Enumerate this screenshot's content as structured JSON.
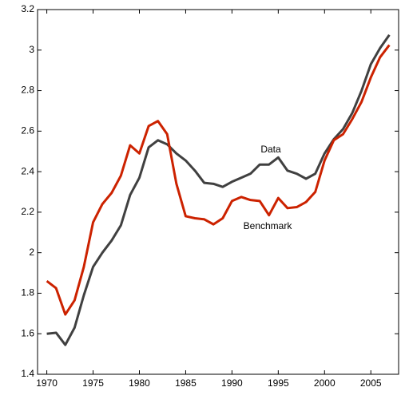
{
  "chart_data": {
    "type": "line",
    "x": [
      1970,
      1971,
      1972,
      1973,
      1974,
      1975,
      1976,
      1977,
      1978,
      1979,
      1980,
      1981,
      1982,
      1983,
      1984,
      1985,
      1986,
      1987,
      1988,
      1989,
      1990,
      1991,
      1992,
      1993,
      1994,
      1995,
      1996,
      1997,
      1998,
      1999,
      2000,
      2001,
      2002,
      2003,
      2004,
      2005,
      2006,
      2007
    ],
    "series": [
      {
        "name": "Data",
        "color": "#404040",
        "values": [
          1.6,
          1.605,
          1.545,
          1.63,
          1.79,
          1.93,
          2.0,
          2.06,
          2.135,
          2.285,
          2.37,
          2.52,
          2.555,
          2.535,
          2.49,
          2.455,
          2.405,
          2.345,
          2.34,
          2.325,
          2.35,
          2.37,
          2.39,
          2.435,
          2.435,
          2.47,
          2.405,
          2.39,
          2.365,
          2.39,
          2.49,
          2.56,
          2.61,
          2.69,
          2.8,
          2.93,
          3.01,
          3.075
        ]
      },
      {
        "name": "Benchmark",
        "color": "#cc2200",
        "values": [
          1.86,
          1.825,
          1.695,
          1.765,
          1.93,
          2.15,
          2.24,
          2.295,
          2.38,
          2.53,
          2.49,
          2.625,
          2.65,
          2.585,
          2.34,
          2.18,
          2.17,
          2.165,
          2.14,
          2.17,
          2.255,
          2.275,
          2.26,
          2.255,
          2.185,
          2.27,
          2.22,
          2.225,
          2.25,
          2.3,
          2.455,
          2.555,
          2.585,
          2.66,
          2.745,
          2.865,
          2.965,
          3.025
        ]
      }
    ],
    "xlim": [
      1969,
      2008
    ],
    "xticks": [
      1970,
      1975,
      1980,
      1985,
      1990,
      1995,
      2000,
      2005
    ],
    "ylim": [
      1.4,
      3.2
    ],
    "yticks": [
      1.4,
      1.6,
      1.8,
      2,
      2.2,
      2.4,
      2.6,
      2.8,
      3,
      3.2
    ],
    "grid": false
  }
}
